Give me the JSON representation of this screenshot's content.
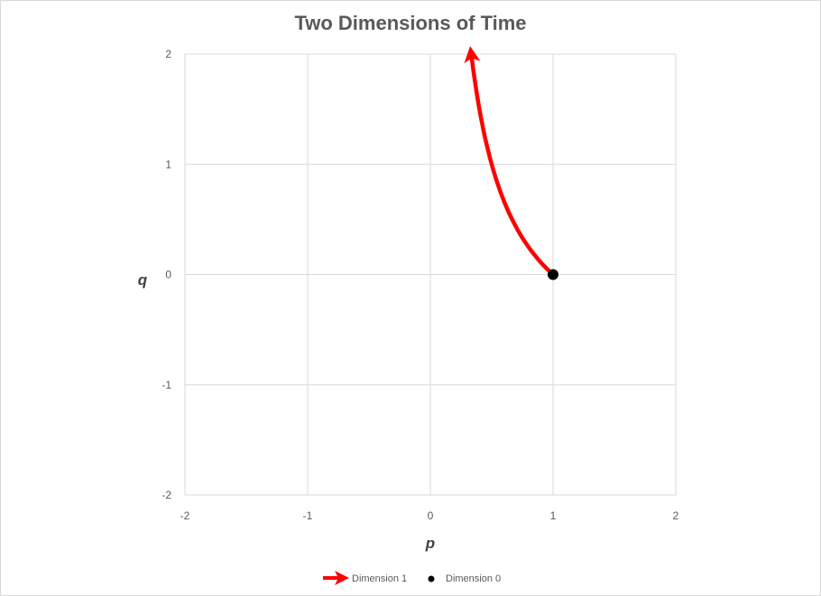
{
  "chart_data": {
    "type": "line",
    "title": "Two Dimensions of Time",
    "xlabel": "p",
    "ylabel": "q",
    "xlim": [
      -2,
      2
    ],
    "ylim": [
      -2,
      2
    ],
    "xticks": [
      "-2",
      "-1",
      "0",
      "1",
      "2"
    ],
    "yticks": [
      "-2",
      "-1",
      "0",
      "1",
      "2"
    ],
    "grid": true,
    "legend": "bottom",
    "series": [
      {
        "name": "Dimension 1",
        "style": "curve-with-arrow",
        "color": "#ff0000",
        "x": [
          1,
          0.8,
          0.667,
          0.571,
          0.5,
          0.444,
          0.4,
          0.364,
          0.333
        ],
        "y": [
          0,
          0.25,
          0.5,
          0.75,
          1,
          1.25,
          1.5,
          1.75,
          2
        ]
      },
      {
        "name": "Dimension 0",
        "style": "point",
        "color": "#000000",
        "x": [
          1
        ],
        "y": [
          0
        ]
      }
    ]
  }
}
